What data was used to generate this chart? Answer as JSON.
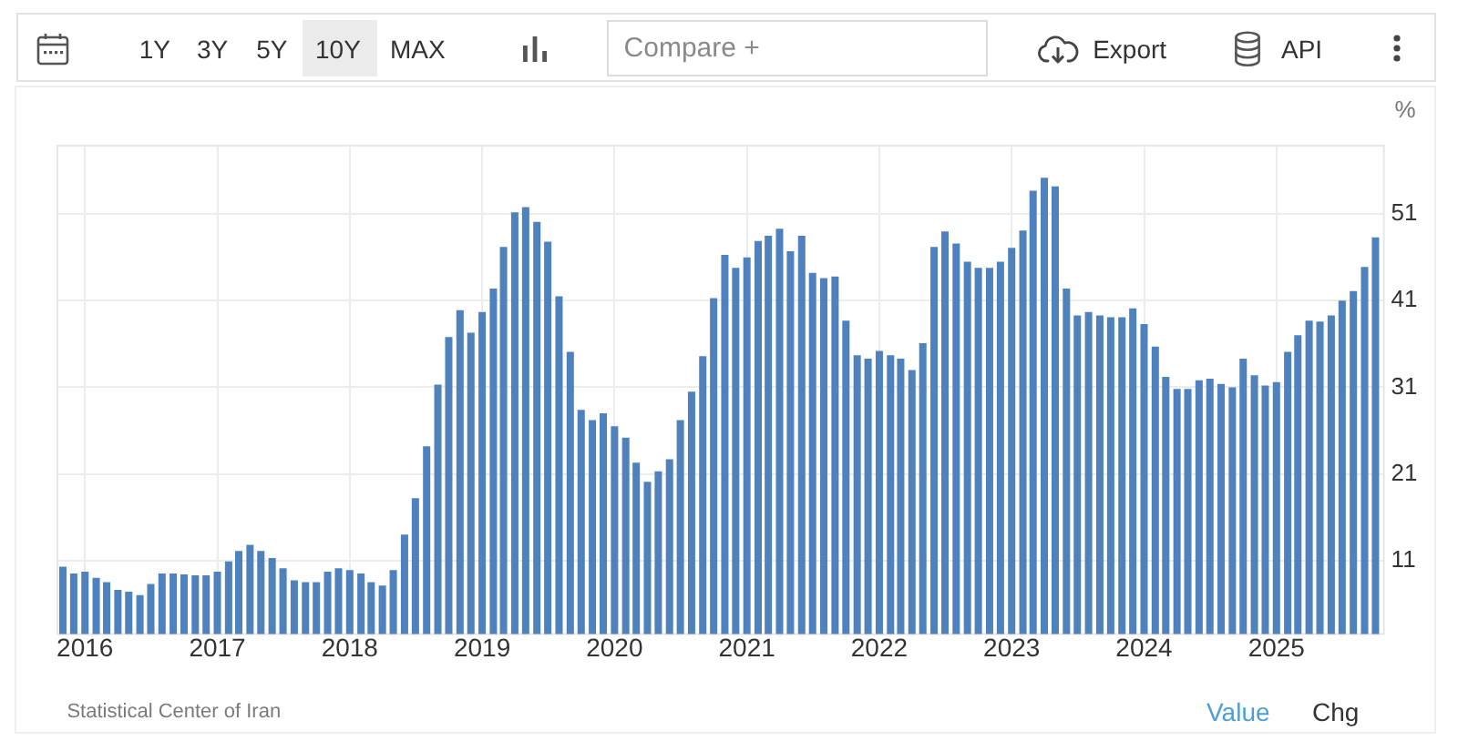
{
  "chart_data": {
    "type": "bar",
    "ylabel": "%",
    "color": "#4f81bd",
    "x": [
      "2015-11",
      "2015-12",
      "2016-01",
      "2016-02",
      "2016-03",
      "2016-04",
      "2016-05",
      "2016-06",
      "2016-07",
      "2016-08",
      "2016-09",
      "2016-10",
      "2016-11",
      "2016-12",
      "2017-01",
      "2017-02",
      "2017-03",
      "2017-04",
      "2017-05",
      "2017-06",
      "2017-07",
      "2017-08",
      "2017-09",
      "2017-10",
      "2017-11",
      "2017-12",
      "2018-01",
      "2018-02",
      "2018-03",
      "2018-04",
      "2018-05",
      "2018-06",
      "2018-07",
      "2018-08",
      "2018-09",
      "2018-10",
      "2018-11",
      "2018-12",
      "2019-01",
      "2019-02",
      "2019-03",
      "2019-04",
      "2019-05",
      "2019-06",
      "2019-07",
      "2019-08",
      "2019-09",
      "2019-10",
      "2019-11",
      "2019-12",
      "2020-01",
      "2020-02",
      "2020-03",
      "2020-04",
      "2020-05",
      "2020-06",
      "2020-07",
      "2020-08",
      "2020-09",
      "2020-10",
      "2020-11",
      "2020-12",
      "2021-01",
      "2021-02",
      "2021-03",
      "2021-04",
      "2021-05",
      "2021-06",
      "2021-07",
      "2021-08",
      "2021-09",
      "2021-10",
      "2021-11",
      "2021-12",
      "2022-01",
      "2022-02",
      "2022-03",
      "2022-04",
      "2022-05",
      "2022-06",
      "2022-07",
      "2022-08",
      "2022-09",
      "2022-10",
      "2022-11",
      "2022-12",
      "2023-01",
      "2023-02",
      "2023-03",
      "2023-04",
      "2023-05",
      "2023-06",
      "2023-07",
      "2023-08",
      "2023-09",
      "2023-10",
      "2023-11",
      "2023-12",
      "2024-01",
      "2024-02",
      "2024-03",
      "2024-04",
      "2024-05",
      "2024-06",
      "2024-07",
      "2024-08",
      "2024-09",
      "2024-10",
      "2024-11",
      "2024-12",
      "2025-01",
      "2025-02",
      "2025-03",
      "2025-04",
      "2025-05",
      "2025-06",
      "2025-07",
      "2025-08",
      "2025-09",
      "2025-10"
    ],
    "values": [
      10.3,
      9.5,
      9.7,
      9.0,
      8.5,
      7.6,
      7.4,
      7.0,
      8.3,
      9.5,
      9.5,
      9.4,
      9.3,
      9.3,
      9.7,
      10.9,
      12.1,
      12.8,
      12.1,
      11.3,
      10.1,
      8.7,
      8.5,
      8.5,
      9.7,
      10.1,
      9.9,
      9.5,
      8.5,
      8.1,
      9.9,
      14.0,
      18.2,
      24.2,
      31.3,
      36.8,
      39.9,
      37.3,
      39.7,
      42.4,
      47.2,
      51.2,
      51.8,
      50.1,
      47.8,
      41.5,
      35.1,
      28.4,
      27.2,
      28.0,
      26.5,
      25.2,
      22.3,
      20.1,
      21.3,
      22.7,
      27.2,
      30.5,
      34.6,
      41.3,
      46.3,
      44.8,
      46.0,
      47.9,
      48.5,
      49.3,
      46.7,
      48.5,
      44.2,
      43.6,
      43.8,
      38.7,
      34.7,
      34.3,
      35.2,
      34.7,
      34.3,
      33.0,
      36.1,
      47.2,
      49.0,
      47.6,
      45.5,
      44.8,
      44.8,
      45.5,
      47.1,
      49.1,
      53.7,
      55.2,
      54.2,
      42.4,
      39.3,
      39.7,
      39.3,
      39.1,
      39.1,
      40.1,
      38.3,
      35.7,
      32.2,
      30.8,
      30.8,
      31.8,
      32.0,
      31.4,
      31.0,
      34.3,
      32.4,
      31.2,
      31.6,
      35.1,
      37.0,
      38.7,
      38.6,
      39.3,
      41.0,
      42.1,
      44.9,
      48.3
    ],
    "xlim": [
      "2015-10-17",
      "2025-10-24"
    ],
    "xticks": [
      "2016",
      "2017",
      "2018",
      "2019",
      "2020",
      "2021",
      "2022",
      "2023",
      "2024",
      "2025"
    ],
    "ylim": [
      2.5,
      58.9
    ],
    "yticks": [
      11,
      21,
      31,
      41,
      51
    ],
    "grid": true,
    "annotations": [
      "1Y",
      "3Y",
      "5Y",
      "10Y",
      "MAX",
      "Compare +",
      "Export",
      "API",
      "Statistical Center of Iran",
      "Value",
      "Chg"
    ]
  }
}
